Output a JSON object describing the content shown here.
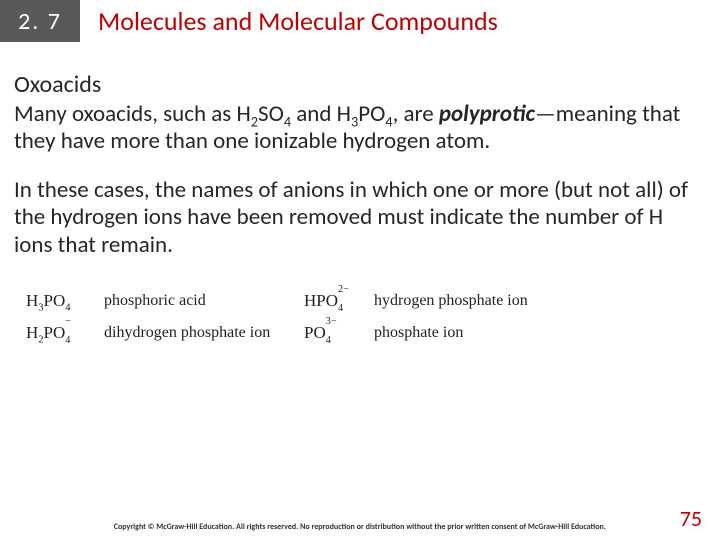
{
  "header": {
    "section_number": "2. 7",
    "title": "Molecules and Molecular Compounds"
  },
  "subheading": "Oxoacids",
  "para1_parts": {
    "a": "Many oxoacids, such as H",
    "b": "SO",
    "c": " and H",
    "d": "PO",
    "e": ", are ",
    "f": "polyprotic",
    "g": "—meaning that they have more than one ionizable hydrogen atom."
  },
  "para2": "In these cases, the names of anions in which one or more (but not all) of the hydrogen ions have been removed must indicate the number of H ions that remain.",
  "table": {
    "rows": [
      {
        "f1_base": "H",
        "f1_s1": "3",
        "f1_mid": "PO",
        "f1_s2": "4",
        "f1_charge": "",
        "name1": "phosphoric acid",
        "f2_base": "HPO",
        "f2_sub": "4",
        "f2_sup": "2−",
        "name2": "hydrogen phosphate ion"
      },
      {
        "f1_base": "H",
        "f1_s1": "2",
        "f1_mid": "PO",
        "f1_s2": "4",
        "f1_charge": "−",
        "name1": "dihydrogen phosphate ion",
        "f2_base": "PO",
        "f2_sub": "4",
        "f2_sup": "3−",
        "name2": "phosphate ion"
      }
    ]
  },
  "footer": {
    "copyright": "Copyright © McGraw-Hill Education. All rights reserved. No reproduction or distribution without the prior written consent of McGraw-Hill Education.",
    "page": "75"
  },
  "colors": {
    "accent": "#c00000",
    "dark_box": "#595959"
  }
}
